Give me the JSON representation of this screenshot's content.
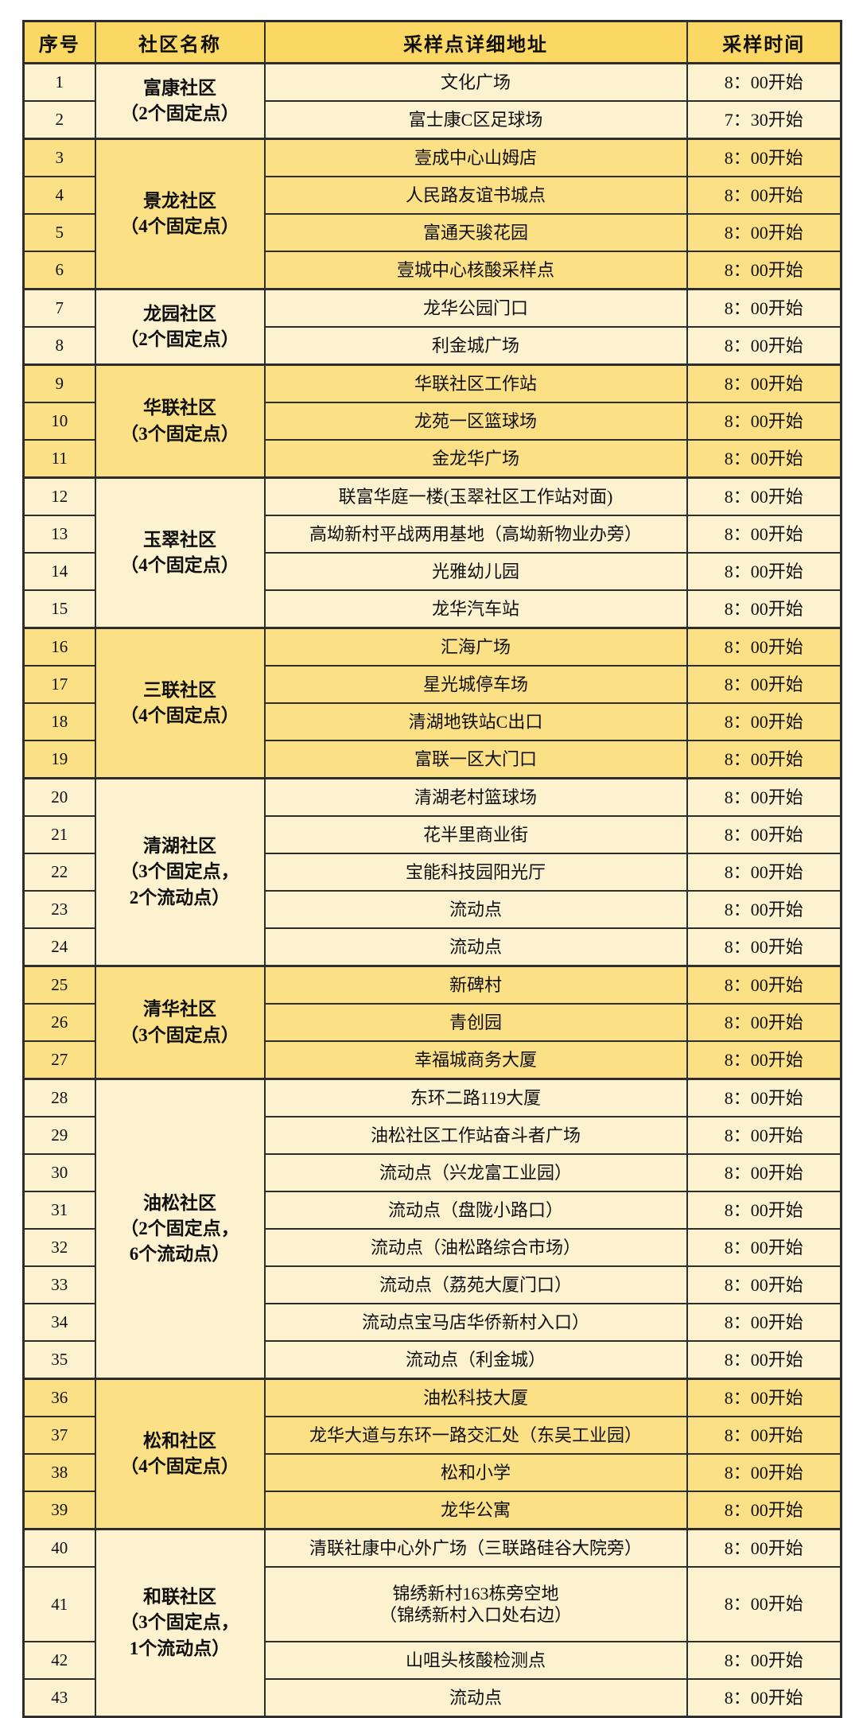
{
  "colors": {
    "header_bg": "#fad863",
    "row_yellow": "#fbe086",
    "row_cream": "#fcf2d0",
    "border": "#2d2d2d",
    "text": "#0f0f0f",
    "page_bg": "#ffffff"
  },
  "table": {
    "columns": [
      "序号",
      "社区名称",
      "采样点详细地址",
      "采样时间"
    ],
    "groups": [
      {
        "community": "富康社区",
        "note": "（2个固定点）",
        "shade": "cream",
        "rows": [
          {
            "no": "1",
            "address": "文化广场",
            "time": "8：00开始"
          },
          {
            "no": "2",
            "address": "富士康C区足球场",
            "time": "7：30开始"
          }
        ]
      },
      {
        "community": "景龙社区",
        "note": "（4个固定点）",
        "shade": "yellow",
        "rows": [
          {
            "no": "3",
            "address": "壹成中心山姆店",
            "time": "8：00开始"
          },
          {
            "no": "4",
            "address": "人民路友谊书城点",
            "time": "8：00开始"
          },
          {
            "no": "5",
            "address": "富通天骏花园",
            "time": "8：00开始"
          },
          {
            "no": "6",
            "address": "壹城中心核酸采样点",
            "time": "8：00开始"
          }
        ]
      },
      {
        "community": "龙园社区",
        "note": "（2个固定点）",
        "shade": "cream",
        "rows": [
          {
            "no": "7",
            "address": "龙华公园门口",
            "time": "8：00开始"
          },
          {
            "no": "8",
            "address": "利金城广场",
            "time": "8：00开始"
          }
        ]
      },
      {
        "community": "华联社区",
        "note": "（3个固定点）",
        "shade": "yellow",
        "rows": [
          {
            "no": "9",
            "address": "华联社区工作站",
            "time": "8：00开始"
          },
          {
            "no": "10",
            "address": "龙苑一区篮球场",
            "time": "8：00开始"
          },
          {
            "no": "11",
            "address": "金龙华广场",
            "time": "8：00开始"
          }
        ]
      },
      {
        "community": "玉翠社区",
        "note": "（4个固定点）",
        "shade": "cream",
        "rows": [
          {
            "no": "12",
            "address": "联富华庭一楼(玉翠社区工作站对面)",
            "time": "8：00开始"
          },
          {
            "no": "13",
            "address": "高坳新村平战两用基地（高坳新物业办旁）",
            "time": "8：00开始"
          },
          {
            "no": "14",
            "address": "光雅幼儿园",
            "time": "8：00开始"
          },
          {
            "no": "15",
            "address": "龙华汽车站",
            "time": "8：00开始"
          }
        ]
      },
      {
        "community": "三联社区",
        "note": "（4个固定点）",
        "shade": "yellow",
        "rows": [
          {
            "no": "16",
            "address": "汇海广场",
            "time": "8：00开始"
          },
          {
            "no": "17",
            "address": "星光城停车场",
            "time": "8：00开始"
          },
          {
            "no": "18",
            "address": "清湖地铁站C出口",
            "time": "8：00开始"
          },
          {
            "no": "19",
            "address": "富联一区大门口",
            "time": "8：00开始"
          }
        ]
      },
      {
        "community": "清湖社区",
        "note": "（3个固定点，\n2个流动点）",
        "shade": "cream",
        "rows": [
          {
            "no": "20",
            "address": "清湖老村篮球场",
            "time": "8：00开始"
          },
          {
            "no": "21",
            "address": "花半里商业街",
            "time": "8：00开始"
          },
          {
            "no": "22",
            "address": "宝能科技园阳光厅",
            "time": "8：00开始"
          },
          {
            "no": "23",
            "address": "流动点",
            "time": "8：00开始"
          },
          {
            "no": "24",
            "address": "流动点",
            "time": "8：00开始"
          }
        ]
      },
      {
        "community": "清华社区",
        "note": "（3个固定点）",
        "shade": "yellow",
        "rows": [
          {
            "no": "25",
            "address": "新碑村",
            "time": "8：00开始"
          },
          {
            "no": "26",
            "address": "青创园",
            "time": "8：00开始"
          },
          {
            "no": "27",
            "address": "幸福城商务大厦",
            "time": "8：00开始"
          }
        ]
      },
      {
        "community": "油松社区",
        "note": "（2个固定点，\n6个流动点）",
        "shade": "cream",
        "rows": [
          {
            "no": "28",
            "address": "东环二路119大厦",
            "time": "8：00开始"
          },
          {
            "no": "29",
            "address": "油松社区工作站奋斗者广场",
            "time": "8：00开始"
          },
          {
            "no": "30",
            "address": "流动点（兴龙富工业园）",
            "time": "8：00开始"
          },
          {
            "no": "31",
            "address": "流动点（盘陇小路口）",
            "time": "8：00开始"
          },
          {
            "no": "32",
            "address": "流动点（油松路综合市场）",
            "time": "8：00开始"
          },
          {
            "no": "33",
            "address": "流动点（荔苑大厦门口）",
            "time": "8：00开始"
          },
          {
            "no": "34",
            "address": "流动点宝马店华侨新村入口）",
            "time": "8：00开始"
          },
          {
            "no": "35",
            "address": "流动点（利金城）",
            "time": "8：00开始"
          }
        ]
      },
      {
        "community": "松和社区",
        "note": "（4个固定点）",
        "shade": "yellow",
        "rows": [
          {
            "no": "36",
            "address": "油松科技大厦",
            "time": "8：00开始"
          },
          {
            "no": "37",
            "address": "龙华大道与东环一路交汇处（东吴工业园）",
            "time": "8：00开始"
          },
          {
            "no": "38",
            "address": "松和小学",
            "time": "8：00开始"
          },
          {
            "no": "39",
            "address": "龙华公寓",
            "time": "8：00开始"
          }
        ]
      },
      {
        "community": "和联社区",
        "note": "（3个固定点，\n1个流动点）",
        "shade": "cream",
        "rows": [
          {
            "no": "40",
            "address": "清联社康中心外广场（三联路硅谷大院旁）",
            "time": "8：00开始"
          },
          {
            "no": "41",
            "address": "锦绣新村163栋旁空地\n（锦绣新村入口处右边）",
            "time": "8：00开始"
          },
          {
            "no": "42",
            "address": "山咀头核酸检测点",
            "time": "8：00开始"
          },
          {
            "no": "43",
            "address": "流动点",
            "time": "8：00开始"
          }
        ]
      }
    ]
  }
}
